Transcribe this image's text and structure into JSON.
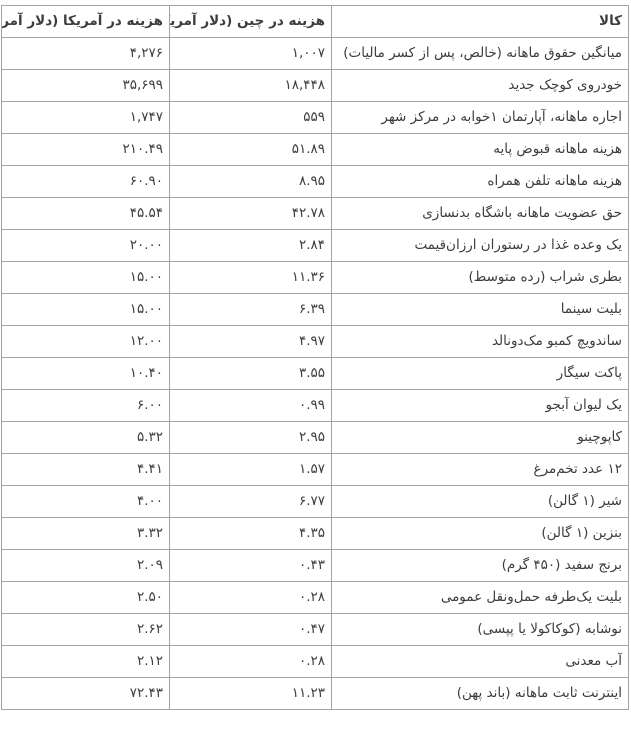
{
  "colors": {
    "border": "#a3a3a3",
    "text": "#3d3d3d",
    "background": "#ffffff"
  },
  "chart_data": {
    "type": "table",
    "direction": "rtl",
    "layout": {
      "grid": "full-borders",
      "header_bold": true,
      "value_alignment": "right",
      "digit_style": "persian"
    },
    "columns": [
      {
        "key": "item",
        "label": "کالا"
      },
      {
        "key": "china",
        "label": "هزینه در چین (دلار آمریکا)"
      },
      {
        "key": "usa",
        "label": "هزینه در آمریکا (دلار آمریکا)"
      }
    ],
    "rows": [
      {
        "item": "میانگین حقوق ماهانه (خالص، پس از کسر مالیات)",
        "china": "۱,۰۰۷",
        "usa": "۴,۲۷۶",
        "china_usd": 1007,
        "usa_usd": 4276
      },
      {
        "item": "خودروی کوچک جدید",
        "china": "۱۸,۴۴۸",
        "usa": "۳۵,۶۹۹",
        "china_usd": 18448,
        "usa_usd": 35699
      },
      {
        "item": "اجاره ماهانه، آپارتمان ۱خوابه در مرکز شهر",
        "china": "۵۵۹",
        "usa": "۱,۷۴۷",
        "china_usd": 559,
        "usa_usd": 1747
      },
      {
        "item": "هزینه ماهانه قبوض پایه",
        "china": "۵۱.۸۹",
        "usa": "۲۱۰.۴۹",
        "china_usd": 51.89,
        "usa_usd": 210.49
      },
      {
        "item": "هزینه ماهانه تلفن همراه",
        "china": "۸.۹۵",
        "usa": "۶۰.۹۰",
        "china_usd": 8.95,
        "usa_usd": 60.9
      },
      {
        "item": "حق عضویت ماهانه باشگاه بدنسازی",
        "china": "۴۲.۷۸",
        "usa": "۴۵.۵۴",
        "china_usd": 42.78,
        "usa_usd": 45.54
      },
      {
        "item": "یک وعده غذا در رستوران ارزان‌قیمت",
        "china": "۲.۸۴",
        "usa": "۲۰.۰۰",
        "china_usd": 2.84,
        "usa_usd": 20.0
      },
      {
        "item": "بطری شراب (رده متوسط)",
        "china": "۱۱.۳۶",
        "usa": "۱۵.۰۰",
        "china_usd": 11.36,
        "usa_usd": 15.0
      },
      {
        "item": "بلیت سینما",
        "china": "۶.۳۹",
        "usa": "۱۵.۰۰",
        "china_usd": 6.39,
        "usa_usd": 15.0
      },
      {
        "item": "ساندویچ کمبو مک‌دونالد",
        "china": "۴.۹۷",
        "usa": "۱۲.۰۰",
        "china_usd": 4.97,
        "usa_usd": 12.0
      },
      {
        "item": "پاکت سیگار",
        "china": "۳.۵۵",
        "usa": "۱۰.۴۰",
        "china_usd": 3.55,
        "usa_usd": 10.4
      },
      {
        "item": "یک لیوان آبجو",
        "china": "۰.۹۹",
        "usa": "۶.۰۰",
        "china_usd": 0.99,
        "usa_usd": 6.0
      },
      {
        "item": "کاپوچینو",
        "china": "۲.۹۵",
        "usa": "۵.۳۲",
        "china_usd": 2.95,
        "usa_usd": 5.32
      },
      {
        "item": "۱۲ عدد تخم‌مرغ",
        "china": "۱.۵۷",
        "usa": "۴.۴۱",
        "china_usd": 1.57,
        "usa_usd": 4.41
      },
      {
        "item": "شیر (۱ گالن)",
        "china": "۶.۷۷",
        "usa": "۴.۰۰",
        "china_usd": 6.77,
        "usa_usd": 4.0
      },
      {
        "item": "بنزین (۱ گالن)",
        "china": "۴.۳۵",
        "usa": "۳.۳۲",
        "china_usd": 4.35,
        "usa_usd": 3.32
      },
      {
        "item": "برنج سفید (۴۵۰ گرم)",
        "china": "۰.۴۳",
        "usa": "۲.۰۹",
        "china_usd": 0.43,
        "usa_usd": 2.09
      },
      {
        "item": "بلیت یک‌طرفه حمل‌ونقل عمومی",
        "china": "۰.۲۸",
        "usa": "۲.۵۰",
        "china_usd": 0.28,
        "usa_usd": 2.5
      },
      {
        "item": "نوشابه (کوکاکولا یا پپسی)",
        "china": "۰.۴۷",
        "usa": "۲.۶۲",
        "china_usd": 0.47,
        "usa_usd": 2.62
      },
      {
        "item": "آب معدنی",
        "china": "۰.۲۸",
        "usa": "۲.۱۲",
        "china_usd": 0.28,
        "usa_usd": 2.12
      },
      {
        "item": "اینترنت ثابت ماهانه (باند پهن)",
        "china": "۱۱.۲۳",
        "usa": "۷۲.۴۳",
        "china_usd": 11.23,
        "usa_usd": 72.43
      }
    ]
  }
}
